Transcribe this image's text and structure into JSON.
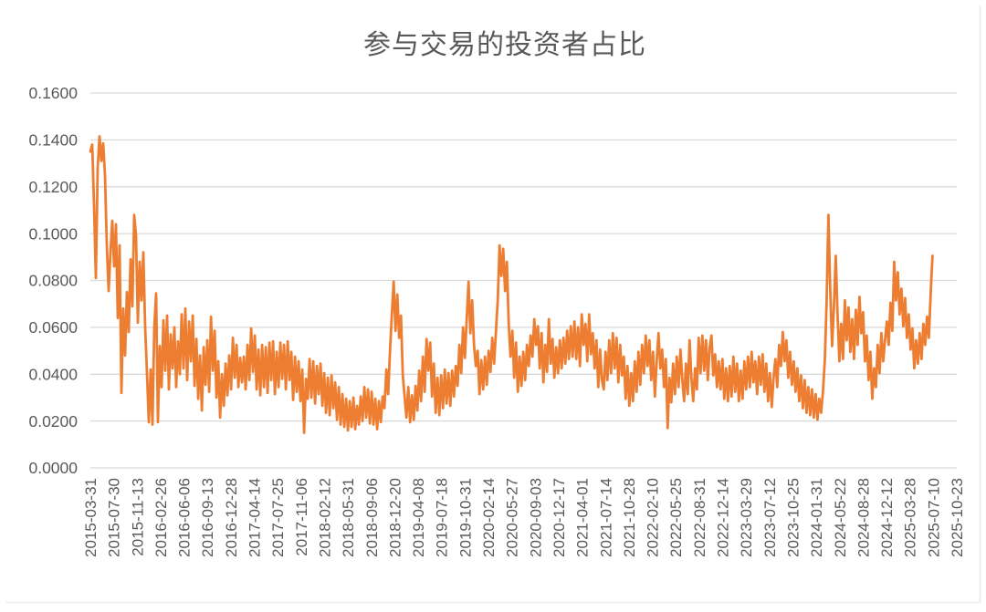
{
  "chart_data": {
    "type": "line",
    "title": "参与交易的投资者占比",
    "xlabel": "",
    "ylabel": "",
    "ylim": [
      0.0,
      0.16
    ],
    "y_tick_step": 0.02,
    "y_tick_labels": [
      "0.0000",
      "0.0200",
      "0.0400",
      "0.0600",
      "0.0800",
      "0.1000",
      "0.1200",
      "0.1400",
      "0.1600"
    ],
    "x_tick_labels": [
      "2015-03-31",
      "2015-07-30",
      "2015-11-13",
      "2016-02-26",
      "2016-06-06",
      "2016-09-13",
      "2016-12-28",
      "2017-04-14",
      "2017-07-25",
      "2017-11-06",
      "2018-02-12",
      "2018-05-31",
      "2018-09-06",
      "2018-12-20",
      "2019-04-08",
      "2019-07-18",
      "2019-10-31",
      "2020-02-14",
      "2020-05-27",
      "2020-09-03",
      "2020-12-17",
      "2021-04-01",
      "2021-07-14",
      "2021-10-28",
      "2022-02-10",
      "2022-05-25",
      "2022-08-31",
      "2022-12-14",
      "2023-03-29",
      "2023-07-12",
      "2023-10-25",
      "2024-01-31",
      "2024-05-22",
      "2024-08-28",
      "2024-12-12",
      "2025-03-28",
      "2025-07-10",
      "2025-10-23"
    ],
    "x_label_rotation_deg": 90,
    "grid": "horizontal",
    "legend": "none",
    "series_end_fraction": 0.972,
    "series": [
      {
        "name": "参与交易的投资者占比",
        "color": "#ED7D31",
        "values": [
          0.135,
          0.138,
          0.112,
          0.081,
          0.128,
          0.1415,
          0.131,
          0.1385,
          0.125,
          0.095,
          0.0755,
          0.092,
          0.1055,
          0.086,
          0.104,
          0.064,
          0.095,
          0.032,
          0.068,
          0.048,
          0.075,
          0.058,
          0.089,
          0.069,
          0.108,
          0.099,
          0.062,
          0.088,
          0.0715,
          0.092,
          0.06,
          0.0405,
          0.0195,
          0.042,
          0.0185,
          0.06,
          0.0745,
          0.0195,
          0.052,
          0.0345,
          0.063,
          0.0415,
          0.065,
          0.0335,
          0.057,
          0.0425,
          0.06,
          0.0345,
          0.054,
          0.04,
          0.0655,
          0.0425,
          0.068,
          0.0375,
          0.0625,
          0.0455,
          0.065,
          0.035,
          0.055,
          0.0295,
          0.048,
          0.0245,
          0.0515,
          0.0355,
          0.0545,
          0.0325,
          0.0645,
          0.0415,
          0.0585,
          0.03,
          0.0455,
          0.0215,
          0.04,
          0.0265,
          0.0445,
          0.031,
          0.048,
          0.0335,
          0.0555,
          0.0385,
          0.0525,
          0.0345,
          0.047,
          0.0365,
          0.0475,
          0.0335,
          0.0525,
          0.0375,
          0.0595,
          0.041,
          0.0565,
          0.0335,
          0.0505,
          0.031,
          0.0525,
          0.0345,
          0.0515,
          0.032,
          0.0535,
          0.0375,
          0.054,
          0.0315,
          0.0495,
          0.0345,
          0.0535,
          0.038,
          0.0525,
          0.0335,
          0.054,
          0.0375,
          0.0495,
          0.029,
          0.0475,
          0.0325,
          0.0455,
          0.0285,
          0.042,
          0.015,
          0.038,
          0.0295,
          0.0465,
          0.03,
          0.0455,
          0.0275,
          0.0435,
          0.0315,
          0.0445,
          0.0265,
          0.0405,
          0.0235,
          0.0385,
          0.0225,
          0.0395,
          0.0255,
          0.0365,
          0.0205,
          0.0345,
          0.0185,
          0.0315,
          0.0175,
          0.0295,
          0.016,
          0.0285,
          0.0175,
          0.03,
          0.0165,
          0.0265,
          0.0185,
          0.0305,
          0.02,
          0.0345,
          0.0215,
          0.0335,
          0.019,
          0.0325,
          0.0185,
          0.0295,
          0.0165,
          0.0285,
          0.0195,
          0.0305,
          0.0255,
          0.042,
          0.0315,
          0.05,
          0.0655,
          0.0795,
          0.0585,
          0.074,
          0.0555,
          0.065,
          0.0395,
          0.0305,
          0.0215,
          0.0345,
          0.0195,
          0.031,
          0.0205,
          0.035,
          0.0245,
          0.0415,
          0.0285,
          0.0475,
          0.0325,
          0.055,
          0.0415,
          0.0535,
          0.0305,
          0.0445,
          0.0235,
          0.0385,
          0.0225,
          0.0395,
          0.0255,
          0.042,
          0.0275,
          0.0405,
          0.0265,
          0.0415,
          0.0305,
          0.0435,
          0.035,
          0.0525,
          0.0405,
          0.06,
          0.047,
          0.0635,
          0.0795,
          0.0575,
          0.0715,
          0.0525,
          0.0435,
          0.05,
          0.0315,
          0.046,
          0.0335,
          0.0475,
          0.0355,
          0.05,
          0.041,
          0.0555,
          0.0445,
          0.058,
          0.0715,
          0.095,
          0.082,
          0.0935,
          0.0755,
          0.088,
          0.0615,
          0.0475,
          0.0585,
          0.0385,
          0.0535,
          0.0325,
          0.0475,
          0.035,
          0.0495,
          0.0375,
          0.0525,
          0.0435,
          0.0565,
          0.0475,
          0.0635,
          0.0525,
          0.0605,
          0.0425,
          0.0575,
          0.0365,
          0.0525,
          0.041,
          0.0635,
          0.0445,
          0.055,
          0.0385,
          0.0515,
          0.0405,
          0.0545,
          0.0425,
          0.0555,
          0.0445,
          0.0585,
          0.0465,
          0.0605,
          0.0475,
          0.0625,
          0.0465,
          0.06,
          0.0435,
          0.0655,
          0.0525,
          0.0615,
          0.0455,
          0.0655,
          0.0485,
          0.0575,
          0.0425,
          0.0545,
          0.0345,
          0.0505,
          0.0375,
          0.0335,
          0.0495,
          0.0375,
          0.0545,
          0.0405,
          0.0575,
          0.0425,
          0.0555,
          0.0365,
          0.0525,
          0.0395,
          0.0475,
          0.0295,
          0.0435,
          0.0265,
          0.0405,
          0.0285,
          0.0455,
          0.0325,
          0.0495,
          0.0355,
          0.0525,
          0.0405,
          0.0565,
          0.0435,
          0.0545,
          0.0375,
          0.0495,
          0.0305,
          0.0455,
          0.0575,
          0.0425,
          0.0505,
          0.0345,
          0.0465,
          0.017,
          0.0385,
          0.028,
          0.0445,
          0.0315,
          0.0475,
          0.0345,
          0.0505,
          0.038,
          0.0285,
          0.0445,
          0.0315,
          0.0545,
          0.0385,
          0.0285,
          0.0425,
          0.0335,
          0.0555,
          0.0405,
          0.0565,
          0.0415,
          0.0545,
          0.0375,
          0.0515,
          0.0565,
          0.0395,
          0.0485,
          0.0345,
          0.0455,
          0.0335,
          0.0465,
          0.0295,
          0.0425,
          0.0285,
          0.0435,
          0.0305,
          0.0475,
          0.0325,
          0.0445,
          0.0285,
          0.0415,
          0.0295,
          0.0455,
          0.0335,
          0.0475,
          0.0345,
          0.0495,
          0.0365,
          0.0455,
          0.0315,
          0.0475,
          0.0355,
          0.0485,
          0.0325,
          0.0445,
          0.0285,
          0.0405,
          0.026,
          0.0385,
          0.0465,
          0.0345,
          0.0525,
          0.0435,
          0.058,
          0.0455,
          0.0545,
          0.0385,
          0.0495,
          0.0355,
          0.0455,
          0.0325,
          0.0425,
          0.0285,
          0.0395,
          0.0255,
          0.0375,
          0.0235,
          0.0345,
          0.0225,
          0.0335,
          0.0215,
          0.0315,
          0.0205,
          0.0295,
          0.0235,
          0.0325,
          0.0455,
          0.0705,
          0.108,
          0.076,
          0.052,
          0.0685,
          0.0905,
          0.0655,
          0.0455,
          0.0615,
          0.0465,
          0.0715,
          0.0545,
          0.0685,
          0.0495,
          0.0635,
          0.0465,
          0.0675,
          0.0525,
          0.073,
          0.0575,
          0.0665,
          0.0455,
          0.0565,
          0.0375,
          0.0495,
          0.0295,
          0.0425,
          0.0345,
          0.0525,
          0.0405,
          0.0575,
          0.0455,
          0.0545,
          0.0625,
          0.0525,
          0.0705,
          0.0585,
          0.088,
          0.0715,
          0.0835,
          0.0655,
          0.0765,
          0.0605,
          0.0725,
          0.0555,
          0.0655,
          0.0505,
          0.0595,
          0.0425,
          0.0545,
          0.0445,
          0.0575,
          0.0465,
          0.0615,
          0.0525,
          0.0645,
          0.0555,
          0.0745,
          0.0905
        ]
      }
    ]
  },
  "colors": {
    "line": "#ED7D31",
    "grid": "#D9D9D9",
    "text": "#595959",
    "frame": "#EDEDED"
  }
}
